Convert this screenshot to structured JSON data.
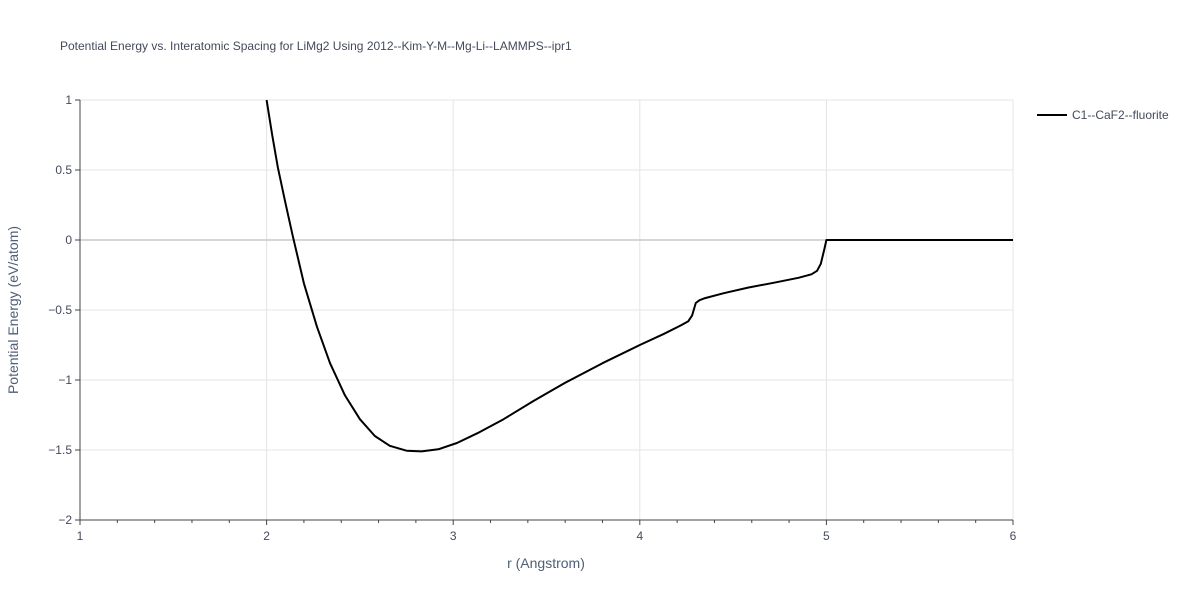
{
  "chart_data": {
    "type": "line",
    "title": "Potential Energy vs. Interatomic Spacing for LiMg2 Using 2012--Kim-Y-M--Mg-Li--LAMMPS--ipr1",
    "xlabel": "r (Angstrom)",
    "ylabel": "Potential Energy (eV/atom)",
    "xlim": [
      1,
      6
    ],
    "ylim": [
      -2,
      1
    ],
    "x_ticks": [
      1,
      2,
      3,
      4,
      5,
      6
    ],
    "x_tick_labels": [
      "1",
      "2",
      "3",
      "4",
      "5",
      "6"
    ],
    "y_ticks": [
      1,
      0.5,
      0,
      -0.5,
      -1,
      -1.5,
      -2
    ],
    "y_tick_labels": [
      "1",
      "0.5",
      "0",
      "−0.5",
      "−1",
      "−1.5",
      "−2"
    ],
    "grid": true,
    "legend_position": "top-right",
    "series": [
      {
        "name": "C1--CaF2--fluorite",
        "color": "#000000",
        "x": [
          2.0,
          2.03,
          2.06,
          2.1,
          2.14,
          2.2,
          2.27,
          2.34,
          2.42,
          2.5,
          2.58,
          2.66,
          2.75,
          2.83,
          2.92,
          3.02,
          3.13,
          3.27,
          3.43,
          3.6,
          3.8,
          4.0,
          4.13,
          4.22,
          4.26,
          4.28,
          4.3,
          4.32,
          4.35,
          4.45,
          4.58,
          4.72,
          4.85,
          4.92,
          4.95,
          4.97,
          4.99,
          5.0,
          5.5,
          6.0
        ],
        "y": [
          1.0,
          0.75,
          0.52,
          0.27,
          0.03,
          -0.31,
          -0.62,
          -0.88,
          -1.11,
          -1.28,
          -1.4,
          -1.47,
          -1.505,
          -1.51,
          -1.495,
          -1.45,
          -1.38,
          -1.28,
          -1.15,
          -1.02,
          -0.88,
          -0.75,
          -0.67,
          -0.61,
          -0.58,
          -0.54,
          -0.45,
          -0.43,
          -0.415,
          -0.38,
          -0.34,
          -0.305,
          -0.27,
          -0.245,
          -0.22,
          -0.17,
          -0.06,
          0.0,
          0.0,
          0.0
        ]
      }
    ]
  }
}
